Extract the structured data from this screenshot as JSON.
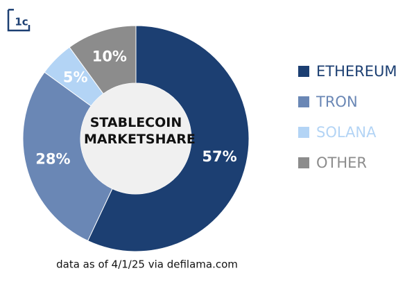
{
  "logo": "1c",
  "chart_data": {
    "type": "donut",
    "title": "STABLECOIN MARKETSHARE",
    "series": [
      {
        "name": "ETHEREUM",
        "color": "#1c3f72",
        "values": [
          57
        ],
        "value_labels": [
          "57%"
        ]
      },
      {
        "name": "TRON",
        "color": "#6a87b5",
        "values": [
          28
        ],
        "value_labels": [
          "28%"
        ]
      },
      {
        "name": "SOLANA",
        "color": "#b3d4f5",
        "values": [
          5
        ],
        "value_labels": [
          "5%"
        ]
      },
      {
        "name": "OTHER",
        "color": "#8c8c8c",
        "values": [
          10
        ],
        "value_labels": [
          "10%"
        ]
      }
    ],
    "legend": "right",
    "source": "data as of 4/1/25 via defilama.com"
  }
}
